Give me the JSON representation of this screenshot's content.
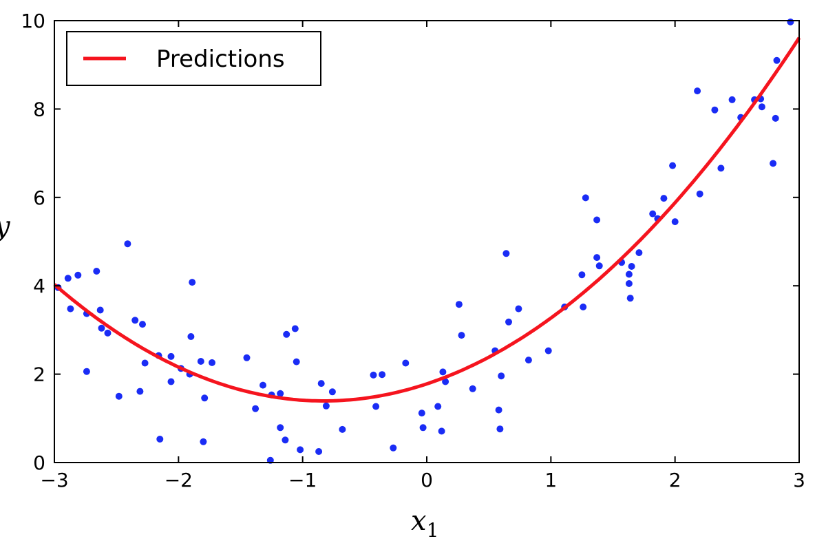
{
  "chart_data": {
    "type": "scatter",
    "title": "",
    "xlabel": "x",
    "xlabel_subscript": "1",
    "ylabel": "y",
    "xlim": [
      -3,
      3
    ],
    "ylim": [
      0,
      10
    ],
    "xticks": [
      -3,
      -2,
      -1,
      0,
      1,
      2,
      3
    ],
    "xtick_labels": [
      "−3",
      "−2",
      "−1",
      "0",
      "1",
      "2",
      "3"
    ],
    "yticks": [
      0,
      2,
      4,
      6,
      8,
      10
    ],
    "ytick_labels": [
      "0",
      "2",
      "4",
      "6",
      "8",
      "10"
    ],
    "grid": false,
    "legend_position": "top-left",
    "scatter_color": "#1a2cf5",
    "line_color": "#f5141e",
    "series": [
      {
        "kind": "scatter",
        "points": [
          [
            -2.97,
            3.96
          ],
          [
            -2.89,
            4.17
          ],
          [
            -2.87,
            3.48
          ],
          [
            -2.81,
            4.24
          ],
          [
            -2.74,
            3.37
          ],
          [
            -2.74,
            2.06
          ],
          [
            -2.66,
            4.33
          ],
          [
            -2.63,
            3.45
          ],
          [
            -2.62,
            3.04
          ],
          [
            -2.57,
            2.93
          ],
          [
            -2.48,
            1.5
          ],
          [
            -2.41,
            4.95
          ],
          [
            -2.35,
            3.22
          ],
          [
            -2.31,
            1.61
          ],
          [
            -2.29,
            3.13
          ],
          [
            -2.27,
            2.25
          ],
          [
            -2.16,
            2.42
          ],
          [
            -2.15,
            0.53
          ],
          [
            -2.06,
            1.83
          ],
          [
            -2.06,
            2.4
          ],
          [
            -1.98,
            2.13
          ],
          [
            -1.91,
            2.0
          ],
          [
            -1.9,
            2.85
          ],
          [
            -1.89,
            4.08
          ],
          [
            -1.82,
            2.29
          ],
          [
            -1.8,
            0.47
          ],
          [
            -1.79,
            1.46
          ],
          [
            -1.73,
            2.26
          ],
          [
            -1.45,
            2.37
          ],
          [
            -1.38,
            1.22
          ],
          [
            -1.32,
            1.75
          ],
          [
            -1.26,
            0.05
          ],
          [
            -1.25,
            1.53
          ],
          [
            -1.18,
            1.56
          ],
          [
            -1.18,
            0.79
          ],
          [
            -1.14,
            0.51
          ],
          [
            -1.13,
            2.9
          ],
          [
            -1.06,
            3.03
          ],
          [
            -1.05,
            2.28
          ],
          [
            -1.02,
            0.29
          ],
          [
            -0.87,
            0.25
          ],
          [
            -0.85,
            1.79
          ],
          [
            -0.81,
            1.28
          ],
          [
            -0.76,
            1.6
          ],
          [
            -0.68,
            0.75
          ],
          [
            -0.43,
            1.98
          ],
          [
            -0.41,
            1.27
          ],
          [
            -0.36,
            1.99
          ],
          [
            -0.27,
            0.33
          ],
          [
            -0.17,
            2.25
          ],
          [
            -0.04,
            1.12
          ],
          [
            -0.03,
            0.79
          ],
          [
            0.09,
            1.27
          ],
          [
            0.12,
            0.71
          ],
          [
            0.13,
            2.05
          ],
          [
            0.15,
            1.83
          ],
          [
            0.26,
            3.58
          ],
          [
            0.28,
            2.88
          ],
          [
            0.37,
            1.67
          ],
          [
            0.55,
            2.53
          ],
          [
            0.58,
            1.19
          ],
          [
            0.59,
            0.76
          ],
          [
            0.6,
            1.96
          ],
          [
            0.64,
            4.73
          ],
          [
            0.66,
            3.18
          ],
          [
            0.74,
            3.48
          ],
          [
            0.82,
            2.32
          ],
          [
            0.98,
            2.53
          ],
          [
            1.11,
            3.52
          ],
          [
            1.25,
            4.25
          ],
          [
            1.26,
            3.52
          ],
          [
            1.28,
            5.99
          ],
          [
            1.37,
            5.49
          ],
          [
            1.37,
            4.64
          ],
          [
            1.39,
            4.45
          ],
          [
            1.57,
            4.53
          ],
          [
            1.63,
            4.26
          ],
          [
            1.63,
            4.05
          ],
          [
            1.64,
            3.72
          ],
          [
            1.65,
            4.44
          ],
          [
            1.71,
            4.75
          ],
          [
            1.82,
            5.63
          ],
          [
            1.86,
            5.52
          ],
          [
            1.91,
            5.98
          ],
          [
            1.98,
            6.72
          ],
          [
            2.0,
            5.45
          ],
          [
            2.18,
            8.41
          ],
          [
            2.2,
            6.08
          ],
          [
            2.32,
            7.98
          ],
          [
            2.37,
            6.66
          ],
          [
            2.46,
            8.21
          ],
          [
            2.53,
            7.81
          ],
          [
            2.64,
            8.21
          ],
          [
            2.69,
            8.23
          ],
          [
            2.7,
            8.05
          ],
          [
            2.79,
            6.77
          ],
          [
            2.81,
            7.79
          ],
          [
            2.82,
            9.1
          ],
          [
            2.93,
            9.97
          ]
        ]
      },
      {
        "kind": "line",
        "name": "Predictions",
        "model": "quadratic",
        "coefficients": {
          "a": 0.56,
          "b": 0.93,
          "c": 1.78
        }
      }
    ]
  }
}
